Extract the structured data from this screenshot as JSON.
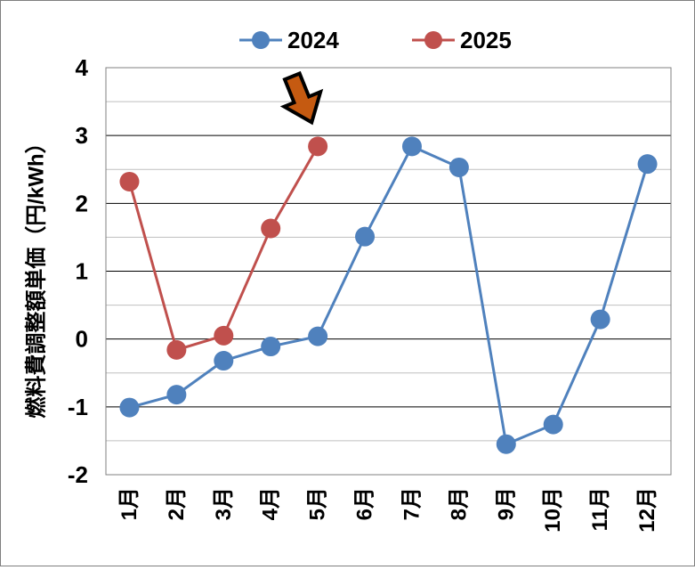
{
  "chart_data": {
    "type": "line",
    "categories": [
      "1月",
      "2月",
      "3月",
      "4月",
      "5月",
      "6月",
      "7月",
      "8月",
      "9月",
      "10月",
      "11月",
      "12月"
    ],
    "series": [
      {
        "name": "2024",
        "color": "#4f81bd",
        "values": [
          -1.01,
          -0.82,
          -0.32,
          -0.11,
          0.04,
          1.51,
          2.84,
          2.53,
          -1.55,
          -1.26,
          0.29,
          2.58
        ]
      },
      {
        "name": "2025",
        "color": "#c0504d",
        "values": [
          2.32,
          -0.16,
          0.05,
          1.63,
          2.84,
          null,
          null,
          null,
          null,
          null,
          null,
          null
        ]
      }
    ],
    "ylabel": "燃料費調整額単価（円/kWh）",
    "ylim": [
      -2,
      4
    ],
    "yticks": [
      "-2",
      "-1",
      "0",
      "1",
      "2",
      "3",
      "4"
    ],
    "grid": "horizontal major and minor",
    "legend": "top",
    "annotation": {
      "type": "arrow",
      "icon": "down-arrow-icon",
      "points_to": "2025 5月",
      "color": "#c55a11"
    }
  }
}
